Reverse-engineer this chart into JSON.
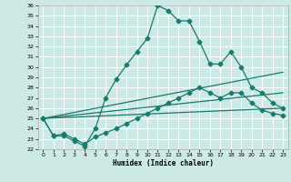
{
  "xlabel": "Humidex (Indice chaleur)",
  "ylabel": "",
  "xlim": [
    -0.5,
    23.5
  ],
  "ylim": [
    22,
    36
  ],
  "yticks": [
    22,
    23,
    24,
    25,
    26,
    27,
    28,
    29,
    30,
    31,
    32,
    33,
    34,
    35,
    36
  ],
  "xticks": [
    0,
    1,
    2,
    3,
    4,
    5,
    6,
    7,
    8,
    9,
    10,
    11,
    12,
    13,
    14,
    15,
    16,
    17,
    18,
    19,
    20,
    21,
    22,
    23
  ],
  "bg_color": "#cce9e5",
  "grid_color": "#ffffff",
  "line_color": "#1a7a6e",
  "main_x": [
    0,
    1,
    2,
    3,
    4,
    5,
    6,
    7,
    8,
    9,
    10,
    11,
    12,
    13,
    14,
    15,
    16,
    17,
    18,
    19,
    20,
    21,
    22,
    23
  ],
  "main_y": [
    25.0,
    23.3,
    23.3,
    22.8,
    22.3,
    24.0,
    27.0,
    28.8,
    30.2,
    31.5,
    32.8,
    36.0,
    35.5,
    34.5,
    34.5,
    32.5,
    30.3,
    30.3,
    31.5,
    30.0,
    28.0,
    27.5,
    26.5,
    26.0
  ],
  "line2_x": [
    0,
    1,
    2,
    3,
    4,
    5,
    6,
    7,
    8,
    9,
    10,
    11,
    12,
    13,
    14,
    15,
    16,
    17,
    18,
    19,
    20,
    21,
    22,
    23
  ],
  "line2_y": [
    25.0,
    23.3,
    23.5,
    23.0,
    22.5,
    23.2,
    23.6,
    24.0,
    24.5,
    25.0,
    25.5,
    26.0,
    26.5,
    27.0,
    27.5,
    28.0,
    27.5,
    27.0,
    27.5,
    27.5,
    26.5,
    25.8,
    25.5,
    25.3
  ],
  "line3_x": [
    0,
    23
  ],
  "line3_y": [
    25.0,
    29.5
  ],
  "line4_x": [
    0,
    23
  ],
  "line4_y": [
    25.0,
    27.5
  ],
  "line5_x": [
    0,
    23
  ],
  "line5_y": [
    25.0,
    26.0
  ],
  "marker_size": 2.5,
  "linewidth": 0.9
}
